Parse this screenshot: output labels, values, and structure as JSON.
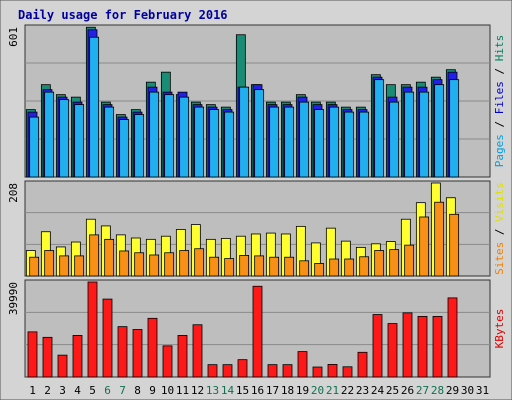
{
  "chart_data": {
    "type": "bar",
    "title": "Daily usage for February 2016",
    "days": [
      "1",
      "2",
      "3",
      "4",
      "5",
      "6",
      "7",
      "8",
      "9",
      "10",
      "11",
      "12",
      "13",
      "14",
      "15",
      "16",
      "17",
      "18",
      "19",
      "20",
      "21",
      "22",
      "23",
      "24",
      "25",
      "26",
      "27",
      "28",
      "29",
      "30",
      "31"
    ],
    "weekend_days": [
      "6",
      "7",
      "13",
      "14",
      "20",
      "21",
      "27",
      "28"
    ],
    "panels": [
      {
        "id": "hits",
        "axis_max_label": "601",
        "ymax": 601,
        "legend": [
          {
            "text": "Pages",
            "color": "#00a0e0"
          },
          {
            "text": "Files",
            "color": "#0000d0"
          },
          {
            "text": "Hits",
            "color": "#008060"
          }
        ],
        "series": [
          {
            "name": "Hits",
            "color": "#188c74",
            "values": [
              270,
              370,
              330,
              320,
              600,
              300,
              250,
              270,
              380,
              420,
              330,
              300,
              290,
              280,
              570,
              370,
              300,
              300,
              330,
              300,
              300,
              280,
              280,
              410,
              370,
              370,
              380,
              400,
              430,
              0,
              0
            ]
          },
          {
            "name": "Files",
            "color": "#2020e8",
            "values": [
              260,
              350,
              320,
              300,
              590,
              290,
              240,
              260,
              360,
              340,
              340,
              290,
              280,
              270,
              360,
              370,
              290,
              290,
              320,
              290,
              290,
              270,
              270,
              400,
              320,
              360,
              360,
              390,
              420,
              0,
              0
            ]
          },
          {
            "name": "Pages",
            "color": "#20b0f0",
            "values": [
              240,
              340,
              310,
              290,
              560,
              280,
              230,
              250,
              340,
              330,
              320,
              280,
              270,
              260,
              360,
              350,
              280,
              280,
              300,
              270,
              280,
              260,
              260,
              390,
              300,
              340,
              340,
              370,
              390,
              0,
              0
            ]
          }
        ]
      },
      {
        "id": "visits",
        "axis_max_label": "208",
        "ymax": 208,
        "legend": [
          {
            "text": "Sites",
            "color": "#f08000"
          },
          {
            "text": "Visits",
            "color": "#e0e000"
          }
        ],
        "series": [
          {
            "name": "Visits",
            "color": "#ffff30",
            "values": [
              57,
              99,
              65,
              76,
              127,
              112,
              92,
              85,
              82,
              89,
              104,
              115,
              82,
              84,
              89,
              94,
              96,
              94,
              111,
              74,
              107,
              78,
              64,
              72,
              77,
              127,
              164,
              208,
              175,
              0,
              0
            ]
          },
          {
            "name": "Sites",
            "color": "#f89018",
            "values": [
              42,
              57,
              45,
              45,
              92,
              82,
              56,
              52,
              47,
              52,
              57,
              61,
              42,
              39,
              46,
              45,
              42,
              42,
              34,
              28,
              38,
              38,
              43,
              57,
              59,
              69,
              132,
              165,
              138,
              0,
              0
            ]
          }
        ]
      },
      {
        "id": "kbytes",
        "axis_max_label": "39990",
        "ymax": 39990,
        "legend": [
          {
            "text": "KBytes",
            "color": "#e00000"
          }
        ],
        "series": [
          {
            "name": "KBytes",
            "color": "#ff1818",
            "values": [
              19000,
              16700,
              9200,
              17500,
              39990,
              32800,
              21200,
              20000,
              24700,
              13100,
              17500,
              22000,
              5200,
              5200,
              7300,
              38200,
              5200,
              5200,
              10700,
              4200,
              5300,
              4300,
              10400,
              26300,
              22500,
              27000,
              25500,
              25500,
              33300,
              0,
              0
            ]
          }
        ]
      }
    ]
  }
}
